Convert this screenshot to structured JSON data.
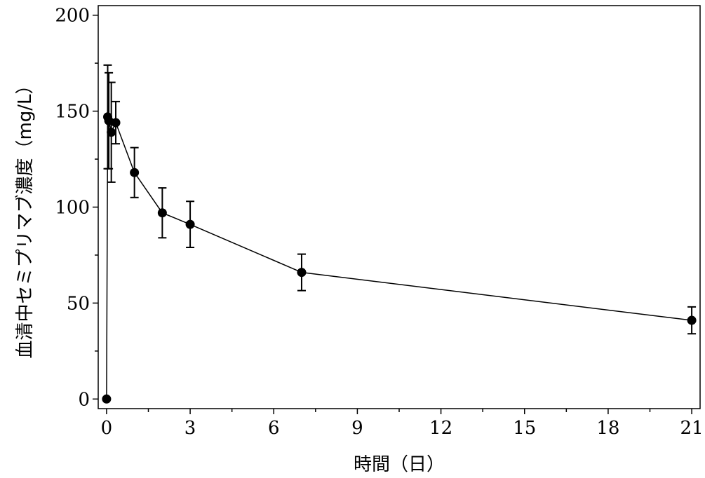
{
  "chart_data": {
    "type": "line",
    "title": "",
    "xlabel": "時間（日）",
    "ylabel": "血清中セミプリマブ濃度（mg/L）",
    "xlim": [
      -0.3,
      21.3
    ],
    "ylim": [
      -5,
      205
    ],
    "xticks": [
      0,
      3,
      6,
      9,
      12,
      15,
      18,
      21
    ],
    "xtick_labels": [
      "0",
      "3",
      "6",
      "9",
      "12",
      "15",
      "18",
      "21"
    ],
    "yticks": [
      0,
      50,
      100,
      150,
      200
    ],
    "ytick_labels": [
      "0",
      "50",
      "100",
      "150",
      "200"
    ],
    "grid": false,
    "legend": false,
    "colors": {
      "line": "#000000",
      "marker": "#000000"
    },
    "series": [
      {
        "points": [
          {
            "x": 0,
            "y": 0
          },
          {
            "x": 0.04,
            "y": 147,
            "err_low": 27,
            "err_high": 27
          },
          {
            "x": 0.08,
            "y": 145,
            "err_low": 25,
            "err_high": 25
          },
          {
            "x": 0.17,
            "y": 139,
            "err_low": 26,
            "err_high": 26
          },
          {
            "x": 0.33,
            "y": 144,
            "err_low": 11,
            "err_high": 11
          },
          {
            "x": 1,
            "y": 118,
            "err_low": 13,
            "err_high": 13
          },
          {
            "x": 2,
            "y": 97,
            "err_low": 13,
            "err_high": 13
          },
          {
            "x": 3,
            "y": 91,
            "err_low": 12,
            "err_high": 12
          },
          {
            "x": 7,
            "y": 66,
            "err_low": 9.5,
            "err_high": 9.5
          },
          {
            "x": 21,
            "y": 41,
            "err_low": 7,
            "err_high": 7
          }
        ]
      }
    ]
  }
}
